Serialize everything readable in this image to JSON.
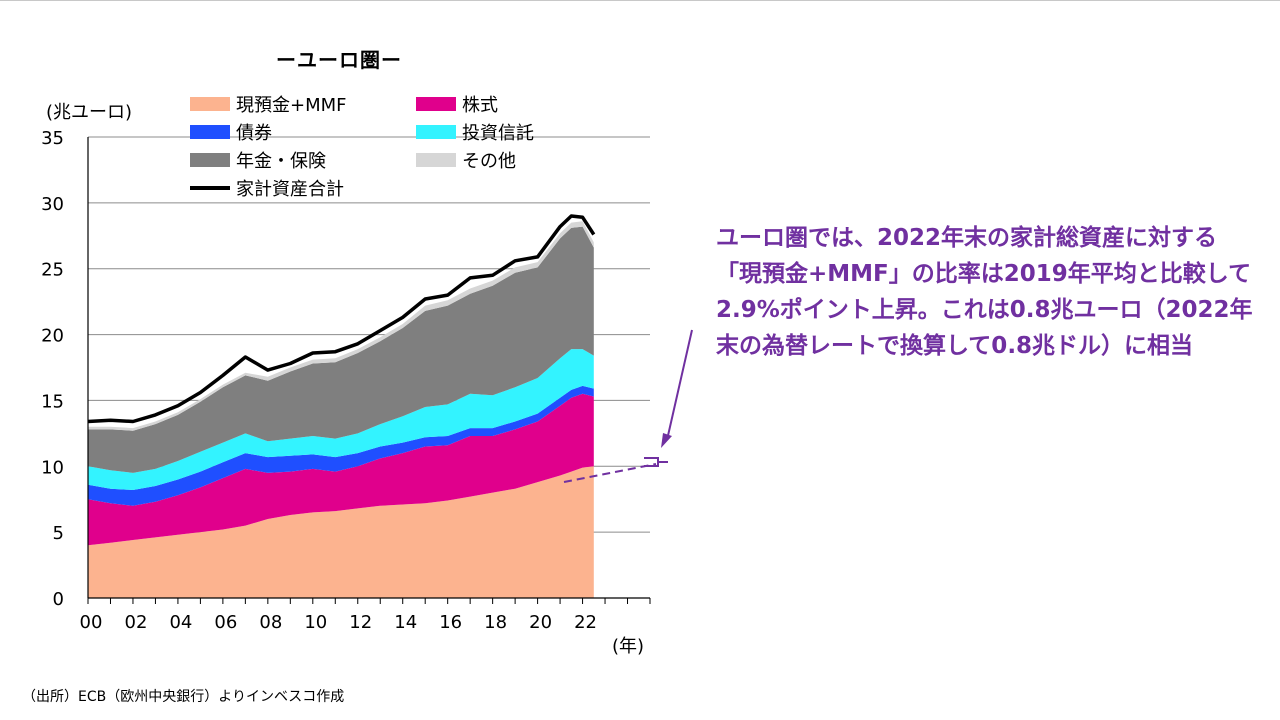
{
  "title": "ーユーロ圏ー",
  "unit_label": "(兆ユーロ)",
  "x_unit_label": "(年)",
  "source": "（出所）ECB（欧州中央銀行）よりインベスコ作成",
  "callout": "ユーロ圏では、2022年末の家計総資産に対する「現預金+MMF」の比率は2019年平均と比較して2.9%ポイント上昇。これは0.8兆ユーロ（2022年末の為替レートで換算して0.8兆ドル）に相当",
  "callout_color": "#7030a0",
  "legend": [
    {
      "label": "現預金+MMF",
      "color": "#fcb38f",
      "kind": "area"
    },
    {
      "label": "株式",
      "color": "#e0008c",
      "kind": "area"
    },
    {
      "label": "債券",
      "color": "#1f4fff",
      "kind": "area"
    },
    {
      "label": "投資信託",
      "color": "#33f3ff",
      "kind": "area"
    },
    {
      "label": "年金・保険",
      "color": "#7f7f7f",
      "kind": "area"
    },
    {
      "label": "その他",
      "color": "#d6d6d6",
      "kind": "area"
    },
    {
      "label": "家計資産合計",
      "color": "#000000",
      "kind": "line"
    }
  ],
  "chart_data": {
    "type": "area",
    "stacked": true,
    "title": "ーユーロ圏ー",
    "ylabel": "(兆ユーロ)",
    "xlabel": "(年)",
    "ylim": [
      0,
      35
    ],
    "y_ticks": [
      0,
      5,
      10,
      15,
      20,
      25,
      30,
      35
    ],
    "x_range": [
      2000,
      2025
    ],
    "x_ticks": [
      "00",
      "02",
      "04",
      "06",
      "08",
      "10",
      "12",
      "14",
      "16",
      "18",
      "20",
      "22"
    ],
    "grid": "horizontal",
    "x": [
      2000.0,
      2001.0,
      2002.0,
      2003.0,
      2004.0,
      2005.0,
      2006.0,
      2007.0,
      2008.0,
      2009.0,
      2010.0,
      2011.0,
      2012.0,
      2013.0,
      2014.0,
      2015.0,
      2016.0,
      2017.0,
      2018.0,
      2019.0,
      2020.0,
      2021.0,
      2021.5,
      2022.0,
      2022.5
    ],
    "series": [
      {
        "name": "現預金+MMF",
        "values": [
          4.0,
          4.2,
          4.4,
          4.6,
          4.8,
          5.0,
          5.2,
          5.5,
          6.0,
          6.3,
          6.5,
          6.6,
          6.8,
          7.0,
          7.1,
          7.2,
          7.4,
          7.7,
          8.0,
          8.3,
          8.8,
          9.3,
          9.6,
          9.9,
          10.0
        ]
      },
      {
        "name": "株式",
        "values": [
          3.5,
          3.0,
          2.6,
          2.7,
          3.0,
          3.4,
          3.9,
          4.3,
          3.5,
          3.3,
          3.3,
          3.0,
          3.2,
          3.6,
          3.9,
          4.3,
          4.2,
          4.6,
          4.3,
          4.5,
          4.6,
          5.3,
          5.6,
          5.6,
          5.3
        ]
      },
      {
        "name": "債券",
        "values": [
          1.1,
          1.1,
          1.2,
          1.2,
          1.2,
          1.2,
          1.2,
          1.2,
          1.2,
          1.2,
          1.1,
          1.1,
          1.0,
          0.9,
          0.8,
          0.7,
          0.7,
          0.6,
          0.6,
          0.6,
          0.6,
          0.6,
          0.6,
          0.6,
          0.6
        ]
      },
      {
        "name": "投資信託",
        "values": [
          1.4,
          1.4,
          1.3,
          1.3,
          1.4,
          1.5,
          1.5,
          1.5,
          1.2,
          1.3,
          1.4,
          1.4,
          1.5,
          1.7,
          2.0,
          2.3,
          2.4,
          2.6,
          2.5,
          2.6,
          2.7,
          3.0,
          3.1,
          2.8,
          2.5
        ]
      },
      {
        "name": "年金・保険",
        "values": [
          2.8,
          3.1,
          3.2,
          3.4,
          3.5,
          3.8,
          4.2,
          4.4,
          4.6,
          5.1,
          5.5,
          5.8,
          6.1,
          6.3,
          6.7,
          7.3,
          7.5,
          7.6,
          8.3,
          8.7,
          8.4,
          9.1,
          9.2,
          9.3,
          8.2
        ]
      },
      {
        "name": "その他",
        "values": [
          0.2,
          0.2,
          0.2,
          0.2,
          0.2,
          0.2,
          0.2,
          0.2,
          0.3,
          0.3,
          0.3,
          0.3,
          0.3,
          0.3,
          0.3,
          0.4,
          0.4,
          0.4,
          0.4,
          0.4,
          0.4,
          0.4,
          0.4,
          0.4,
          0.4
        ]
      }
    ],
    "total_line": {
      "name": "家計資産合計",
      "values": [
        13.4,
        13.5,
        13.4,
        13.9,
        14.6,
        15.6,
        16.9,
        18.3,
        17.3,
        17.8,
        18.6,
        18.7,
        19.3,
        20.3,
        21.3,
        22.7,
        23.0,
        24.3,
        24.5,
        25.6,
        25.9,
        28.2,
        29.0,
        28.9,
        27.6
      ]
    }
  }
}
